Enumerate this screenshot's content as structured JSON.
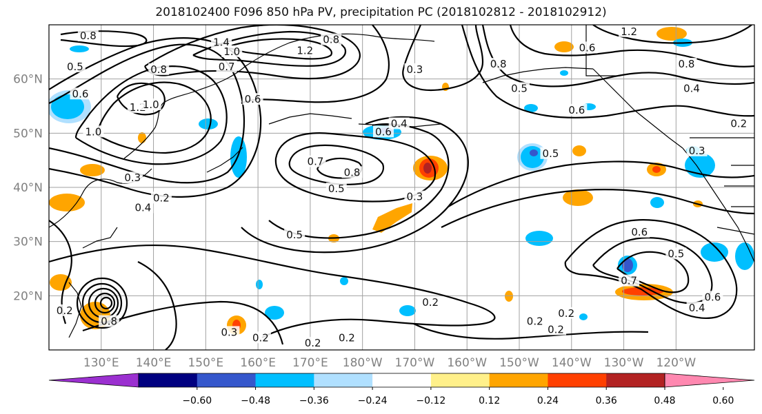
{
  "title": "2018102400 F096 850 hPa PV, precipitation PC (2018102812 - 2018102912)",
  "map": {
    "lon_range": [
      120,
      255
    ],
    "lat_range": [
      10,
      70
    ],
    "lon_ticks": [
      {
        "lon": 130,
        "label": "130°E"
      },
      {
        "lon": 140,
        "label": "140°E"
      },
      {
        "lon": 150,
        "label": "150°E"
      },
      {
        "lon": 160,
        "label": "160°E"
      },
      {
        "lon": 170,
        "label": "170°E"
      },
      {
        "lon": 180,
        "label": "180°W"
      },
      {
        "lon": 190,
        "label": "170°W"
      },
      {
        "lon": 200,
        "label": "160°W"
      },
      {
        "lon": 210,
        "label": "150°W"
      },
      {
        "lon": 220,
        "label": "140°W"
      },
      {
        "lon": 230,
        "label": "130°W"
      },
      {
        "lon": 240,
        "label": "120°W"
      }
    ],
    "lat_ticks": [
      {
        "lat": 20,
        "label": "20°N"
      },
      {
        "lat": 30,
        "label": "30°N"
      },
      {
        "lat": 40,
        "label": "40°N"
      },
      {
        "lat": 50,
        "label": "50°N"
      },
      {
        "lat": 60,
        "label": "60°N"
      }
    ],
    "grid": true
  },
  "contour_labels": [
    {
      "lon": 127.5,
      "lat": 67.7,
      "text": "0.8"
    },
    {
      "lon": 125,
      "lat": 62,
      "text": "0.5"
    },
    {
      "lon": 126,
      "lat": 57,
      "text": "0.6"
    },
    {
      "lon": 137,
      "lat": 54.5,
      "text": "1.2"
    },
    {
      "lon": 139.5,
      "lat": 55,
      "text": "1.0"
    },
    {
      "lon": 128.5,
      "lat": 50,
      "text": "1.0"
    },
    {
      "lon": 141,
      "lat": 61.5,
      "text": "0.8"
    },
    {
      "lon": 153,
      "lat": 66.5,
      "text": "1.4"
    },
    {
      "lon": 155,
      "lat": 64.8,
      "text": "1.0"
    },
    {
      "lon": 154,
      "lat": 62,
      "text": "0.7"
    },
    {
      "lon": 159,
      "lat": 56,
      "text": "0.6"
    },
    {
      "lon": 169,
      "lat": 65,
      "text": "1.2"
    },
    {
      "lon": 174,
      "lat": 67,
      "text": "0.8"
    },
    {
      "lon": 136,
      "lat": 41.5,
      "text": "0.3"
    },
    {
      "lon": 141.5,
      "lat": 37.8,
      "text": "0.2"
    },
    {
      "lon": 138,
      "lat": 36,
      "text": "0.4"
    },
    {
      "lon": 171,
      "lat": 44.5,
      "text": "0.7"
    },
    {
      "lon": 178,
      "lat": 42.5,
      "text": "0.8"
    },
    {
      "lon": 175,
      "lat": 39.5,
      "text": "0.5"
    },
    {
      "lon": 184,
      "lat": 50,
      "text": "0.6"
    },
    {
      "lon": 187,
      "lat": 51.5,
      "text": "0.4"
    },
    {
      "lon": 167,
      "lat": 31,
      "text": "0.5"
    },
    {
      "lon": 190,
      "lat": 38,
      "text": "0.3"
    },
    {
      "lon": 190,
      "lat": 61.5,
      "text": "0.3"
    },
    {
      "lon": 206,
      "lat": 62.5,
      "text": "0.8"
    },
    {
      "lon": 210,
      "lat": 58,
      "text": "0.5"
    },
    {
      "lon": 223,
      "lat": 65.5,
      "text": "0.6"
    },
    {
      "lon": 231,
      "lat": 68.5,
      "text": "1.2"
    },
    {
      "lon": 242,
      "lat": 62.5,
      "text": "0.8"
    },
    {
      "lon": 243,
      "lat": 58,
      "text": "0.4"
    },
    {
      "lon": 252,
      "lat": 51.5,
      "text": "0.2"
    },
    {
      "lon": 221,
      "lat": 54,
      "text": "0.6"
    },
    {
      "lon": 216,
      "lat": 46,
      "text": "0.5"
    },
    {
      "lon": 244,
      "lat": 46.5,
      "text": "0.3"
    },
    {
      "lon": 233,
      "lat": 31.5,
      "text": "0.6"
    },
    {
      "lon": 240,
      "lat": 27.5,
      "text": "0.5"
    },
    {
      "lon": 231,
      "lat": 22.5,
      "text": "0.7"
    },
    {
      "lon": 247,
      "lat": 19.5,
      "text": "0.6"
    },
    {
      "lon": 244,
      "lat": 17.5,
      "text": "0.4"
    },
    {
      "lon": 193,
      "lat": 18.5,
      "text": "0.2"
    },
    {
      "lon": 213,
      "lat": 15,
      "text": "0.2"
    },
    {
      "lon": 219,
      "lat": 16.5,
      "text": "0.2"
    },
    {
      "lon": 217,
      "lat": 13.5,
      "text": "0.2"
    },
    {
      "lon": 170.5,
      "lat": 11,
      "text": "0.2"
    },
    {
      "lon": 177,
      "lat": 12,
      "text": "0.2"
    },
    {
      "lon": 160.5,
      "lat": 12,
      "text": "0.2"
    },
    {
      "lon": 154.5,
      "lat": 13,
      "text": "0.3"
    },
    {
      "lon": 131.5,
      "lat": 15,
      "text": "0.8"
    },
    {
      "lon": 123,
      "lat": 17,
      "text": "0.2"
    }
  ],
  "colorbar": {
    "colors": [
      "#9b30d0",
      "#000080",
      "#3557cc",
      "#00bfff",
      "#b0e0ff",
      "#ffffff",
      "#fff08a",
      "#ffa500",
      "#ff4000",
      "#b22222",
      "#ff88b0"
    ],
    "ticks": [
      "−0.60",
      "−0.48",
      "−0.36",
      "−0.24",
      "−0.12",
      "0.12",
      "0.24",
      "0.36",
      "0.48",
      "0.60"
    ]
  }
}
